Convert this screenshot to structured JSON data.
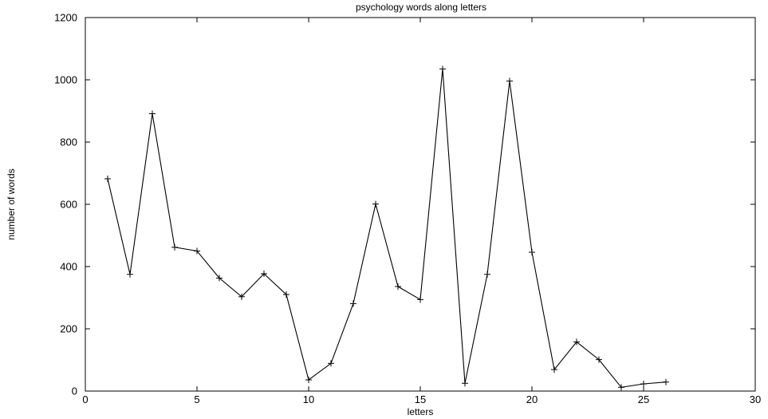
{
  "chart_data": {
    "type": "line",
    "title": "psychology words along letters",
    "xlabel": "letters",
    "ylabel": "number of words",
    "xlim": [
      0,
      30
    ],
    "ylim": [
      0,
      1200
    ],
    "x_ticks": [
      0,
      5,
      10,
      15,
      20,
      25,
      30
    ],
    "y_ticks": [
      0,
      200,
      400,
      600,
      800,
      1000,
      1200
    ],
    "grid": false,
    "marker": "plus",
    "line_color": "#000000",
    "series": [
      {
        "x": [
          1,
          2,
          3,
          4,
          5,
          6,
          7,
          8,
          9,
          10,
          11,
          12,
          13,
          14,
          15,
          16,
          17,
          18,
          19,
          20,
          21,
          22,
          23,
          24,
          25,
          26
        ],
        "values": [
          682,
          375,
          891,
          462,
          450,
          363,
          303,
          377,
          310,
          36,
          89,
          281,
          601,
          336,
          294,
          1035,
          25,
          375,
          996,
          446,
          69,
          158,
          101,
          12,
          23,
          29
        ]
      }
    ]
  }
}
